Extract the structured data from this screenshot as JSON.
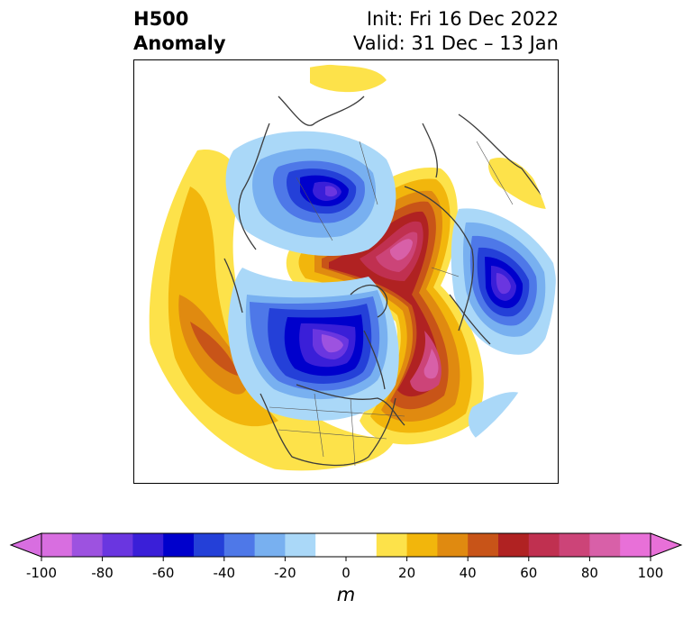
{
  "header": {
    "title_line1": "H500",
    "title_line2": "Anomaly",
    "init_text": "Init: Fri 16 Dec 2022",
    "valid_text": "Valid: 31 Dec – 13 Jan"
  },
  "map": {
    "projection": "north-polar-stereographic",
    "variable": "500 hPa geopotential height anomaly",
    "features": [
      {
        "name": "positive-anomaly-arctic-ridge",
        "sign": "positive",
        "peak_m": 90
      },
      {
        "name": "negative-anomaly-canada-trough",
        "sign": "negative",
        "peak_m": -90
      },
      {
        "name": "negative-anomaly-arctic-canada-trough",
        "sign": "negative",
        "peak_m": -90
      },
      {
        "name": "negative-anomaly-siberia-trough",
        "sign": "negative",
        "peak_m": -90
      },
      {
        "name": "positive-anomaly-north-pacific-ridge",
        "sign": "positive",
        "peak_m": 50
      },
      {
        "name": "positive-anomaly-north-atlantic-ridge",
        "sign": "positive",
        "peak_m": 80
      }
    ]
  },
  "colorbar": {
    "ticks": [
      "-100",
      "-80",
      "-60",
      "-40",
      "-20",
      "0",
      "20",
      "40",
      "60",
      "80",
      "100"
    ],
    "unit": "m",
    "colors": [
      "#d86ee0",
      "#9d52e0",
      "#6a36e0",
      "#3a1fd8",
      "#0000cc",
      "#2440d8",
      "#4e78e8",
      "#78b0f0",
      "#aad8f8",
      "#ffffff",
      "#ffffff",
      "#fde24a",
      "#f2b60c",
      "#e08a10",
      "#c85418",
      "#b02222",
      "#c03050",
      "#cc4478",
      "#d860a8",
      "#e870d8"
    ],
    "min_extend_color": "#d86ee0",
    "max_extend_color": "#e870d8"
  }
}
